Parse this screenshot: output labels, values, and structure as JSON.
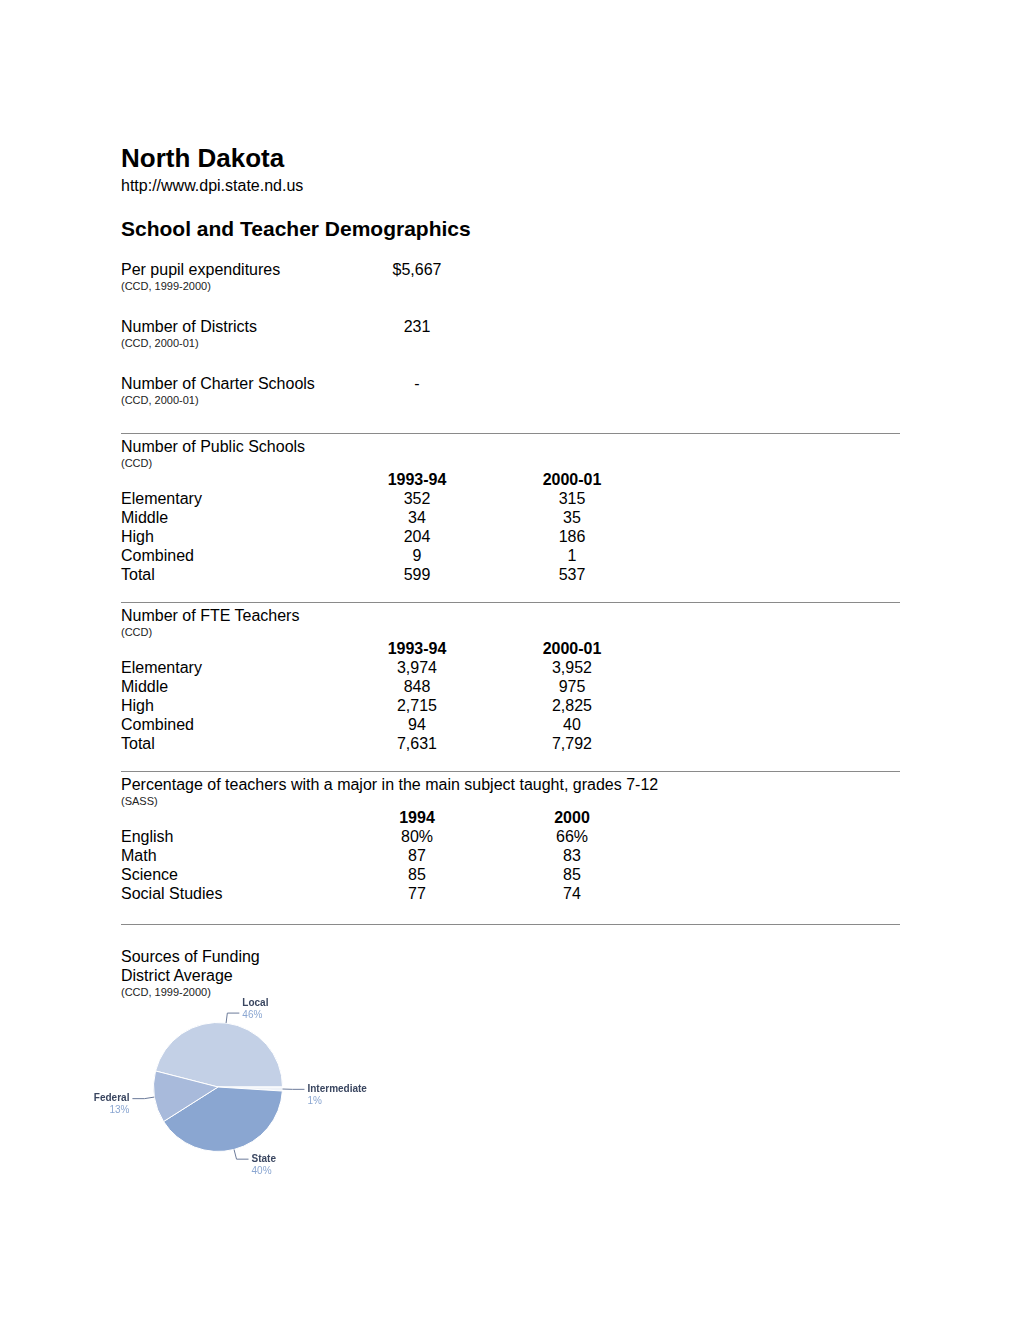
{
  "header": {
    "title": "North Dakota",
    "url": "http://www.dpi.state.nd.us"
  },
  "section_title": "School and Teacher Demographics",
  "stats": [
    {
      "label": "Per pupil expenditures",
      "value": "$5,667",
      "source": "(CCD, 1999-2000)"
    },
    {
      "label": "Number of Districts",
      "value": "231",
      "source": "(CCD, 2000-01)"
    },
    {
      "label": "Number of Charter Schools",
      "value": "-",
      "source": "(CCD, 2000-01)"
    }
  ],
  "tables": [
    {
      "title": "Number of Public Schools",
      "source": "(CCD)",
      "columns": [
        "1993-94",
        "2000-01"
      ],
      "rows": [
        [
          "Elementary",
          "352",
          "315"
        ],
        [
          "Middle",
          "34",
          "35"
        ],
        [
          "High",
          "204",
          "186"
        ],
        [
          "Combined",
          "9",
          "1"
        ],
        [
          "Total",
          "599",
          "537"
        ]
      ]
    },
    {
      "title": "Number of FTE Teachers",
      "source": "(CCD)",
      "columns": [
        "1993-94",
        "2000-01"
      ],
      "rows": [
        [
          "Elementary",
          "3,974",
          "3,952"
        ],
        [
          "Middle",
          "848",
          "975"
        ],
        [
          "High",
          "2,715",
          "2,825"
        ],
        [
          "Combined",
          "94",
          "40"
        ],
        [
          "Total",
          "7,631",
          "7,792"
        ]
      ]
    },
    {
      "title": "Percentage of teachers with a major in the main subject taught, grades 7-12",
      "source": "(SASS)",
      "columns": [
        "1994",
        "2000"
      ],
      "rows": [
        [
          "English",
          "80%",
          "66%"
        ],
        [
          "Math",
          "87",
          "83"
        ],
        [
          "Science",
          "85",
          "85"
        ],
        [
          "Social Studies",
          "77",
          "74"
        ]
      ]
    }
  ],
  "chart_data": {
    "type": "pie",
    "title": "Sources of Funding",
    "subtitle": "District Average",
    "annotations": [
      "(CCD, 1999-2000)"
    ],
    "categories": [
      "Local",
      "Intermediate",
      "State",
      "Federal"
    ],
    "values": [
      46,
      1,
      40,
      13
    ],
    "value_labels": [
      "46%",
      "1%",
      "40%",
      "13%"
    ],
    "colors": [
      "#c3d0e6",
      "#eef2f8",
      "#8aa6d1",
      "#a8badb"
    ],
    "data_labels": true
  }
}
